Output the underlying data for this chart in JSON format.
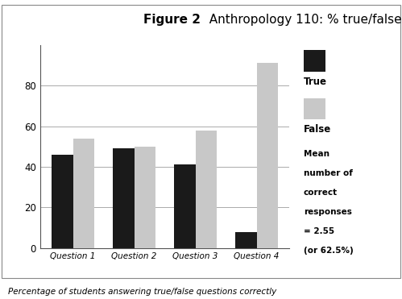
{
  "categories": [
    "Question 1",
    "Question 2",
    "Question 3",
    "Question 4"
  ],
  "true_values": [
    46,
    49,
    41,
    8
  ],
  "false_values": [
    54,
    50,
    58,
    91
  ],
  "true_color": "#1a1a1a",
  "false_color": "#c8c8c8",
  "ylim": [
    0,
    100
  ],
  "yticks": [
    0,
    20,
    40,
    60,
    80
  ],
  "caption": "Percentage of students answering true/false questions correctly",
  "annotation_lines": [
    "Mean",
    "number of",
    "correct",
    "responses",
    "= 2.55",
    "(or 62.5%)"
  ],
  "bg_color": "#ffffff",
  "bar_width": 0.35,
  "grid_color": "#aaaaaa",
  "title_bold_part": "Figure 2",
  "title_normal_part": "  Anthropology 110: % true/false"
}
